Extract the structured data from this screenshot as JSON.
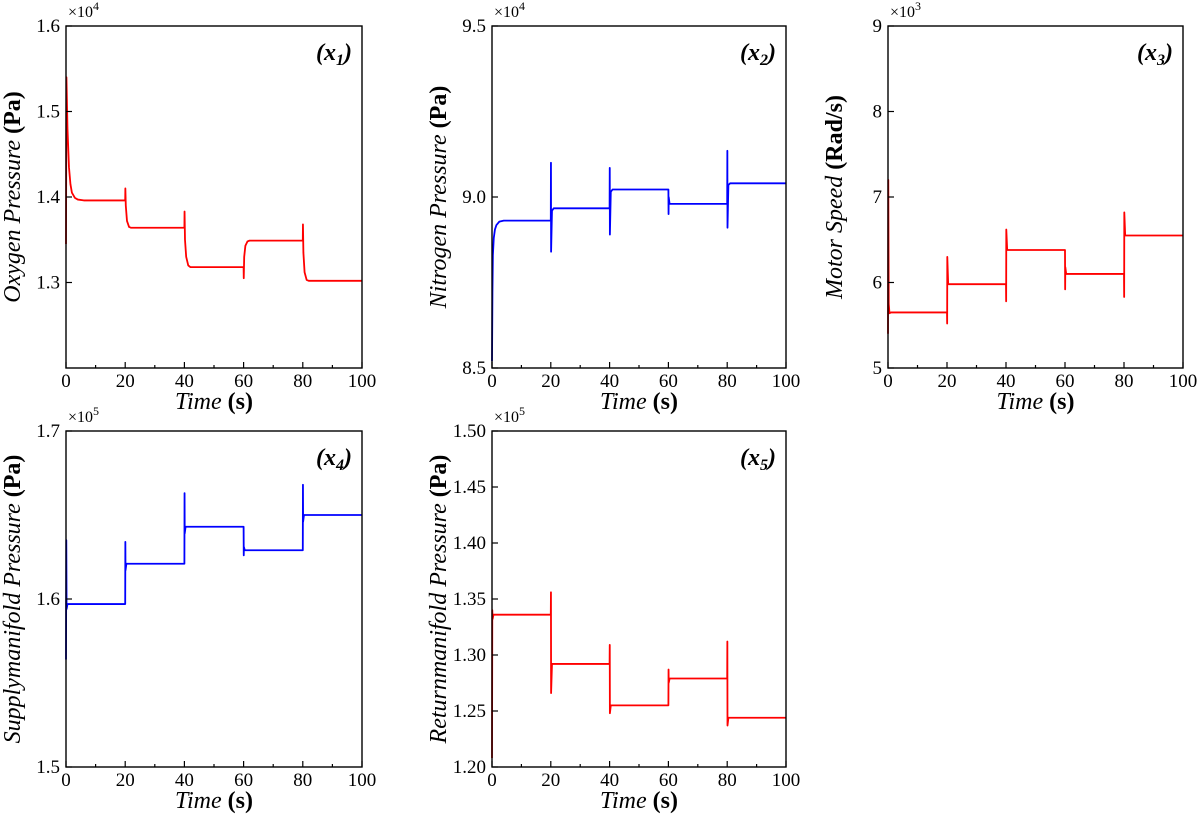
{
  "chart_data": [
    {
      "type": "line",
      "panel": "x1",
      "panel_tag": {
        "open": "(",
        "var": "x",
        "sub": "1",
        "close": ")"
      },
      "xlabel": {
        "italic": "Time",
        "bold": "(s)"
      },
      "ylabel": {
        "italic": "Oxygen Pressure",
        "bold": "(Pa)"
      },
      "multiplier": {
        "base": "×10",
        "exp": "4"
      },
      "xlim": [
        0,
        100
      ],
      "ylim": [
        1.2,
        1.6
      ],
      "xticks": [
        0,
        20,
        40,
        60,
        80,
        100
      ],
      "yticks": [
        1.3,
        1.4,
        1.5,
        1.6
      ],
      "ytick_labels": [
        "1.3",
        "1.4",
        "1.5",
        "1.6"
      ],
      "color": "#ff0000",
      "series": [
        {
          "name": "x1",
          "x": [
            0,
            0.15,
            0.5,
            1,
            1.5,
            2,
            3,
            4,
            6,
            20,
            20.05,
            20.2,
            20.6,
            21.3,
            22,
            40,
            40.05,
            40.2,
            40.6,
            41.3,
            42,
            60,
            60.05,
            60.2,
            60.6,
            61.3,
            62,
            80,
            80.05,
            80.2,
            80.6,
            81.3,
            82,
            100
          ],
          "y": [
            1.345,
            1.54,
            1.48,
            1.435,
            1.415,
            1.405,
            1.399,
            1.397,
            1.396,
            1.396,
            1.41,
            1.39,
            1.372,
            1.365,
            1.364,
            1.364,
            1.383,
            1.35,
            1.33,
            1.32,
            1.318,
            1.318,
            1.305,
            1.33,
            1.343,
            1.348,
            1.349,
            1.349,
            1.368,
            1.335,
            1.312,
            1.303,
            1.302,
            1.302
          ]
        }
      ]
    },
    {
      "type": "line",
      "panel": "x2",
      "panel_tag": {
        "open": "(",
        "var": "x",
        "sub": "2",
        "close": ")"
      },
      "xlabel": {
        "italic": "Time",
        "bold": "(s)"
      },
      "ylabel": {
        "italic": "Nitrogen Pressure",
        "bold": "(Pa)"
      },
      "multiplier": {
        "base": "×10",
        "exp": "4"
      },
      "xlim": [
        0,
        100
      ],
      "ylim": [
        8.5,
        9.5
      ],
      "xticks": [
        0,
        20,
        40,
        60,
        80,
        100
      ],
      "yticks": [
        8.5,
        9.0,
        9.5
      ],
      "ytick_labels": [
        "8.5",
        "9.0",
        "9.5"
      ],
      "color": "#0000ff",
      "series": [
        {
          "name": "x2",
          "x": [
            0,
            0.15,
            0.3,
            0.6,
            1,
            1.5,
            2.5,
            4,
            20,
            20.05,
            20.1,
            20.4,
            21,
            40,
            40.05,
            40.1,
            40.4,
            41,
            60,
            60.05,
            60.1,
            60.4,
            61,
            80,
            80.05,
            80.1,
            80.4,
            81,
            100
          ],
          "y": [
            8.52,
            8.72,
            8.83,
            8.88,
            8.905,
            8.918,
            8.928,
            8.931,
            8.931,
            9.1,
            8.84,
            8.96,
            8.967,
            8.967,
            9.085,
            8.89,
            9.015,
            9.022,
            9.022,
            8.95,
            9.0,
            8.98,
            8.98,
            8.98,
            9.135,
            8.91,
            9.035,
            9.04,
            9.04
          ]
        }
      ]
    },
    {
      "type": "line",
      "panel": "x3",
      "panel_tag": {
        "open": "(",
        "var": "x",
        "sub": "3",
        "close": ")"
      },
      "xlabel": {
        "italic": "Time",
        "bold": "(s)"
      },
      "ylabel": {
        "italic": "Motor Speed",
        "bold": "(Rad/s)"
      },
      "multiplier": {
        "base": "×10",
        "exp": "3"
      },
      "xlim": [
        0,
        100
      ],
      "ylim": [
        5,
        9
      ],
      "xticks": [
        0,
        20,
        40,
        60,
        80,
        100
      ],
      "yticks": [
        5,
        6,
        7,
        8,
        9
      ],
      "ytick_labels": [
        "5",
        "6",
        "7",
        "8",
        "9"
      ],
      "color": "#ff0000",
      "series": [
        {
          "name": "x3",
          "x": [
            0,
            0.1,
            0.25,
            0.5,
            1,
            20,
            20.05,
            20.1,
            20.4,
            40,
            40.05,
            40.1,
            40.4,
            60,
            60.05,
            60.1,
            60.4,
            80,
            80.05,
            80.1,
            80.4,
            100
          ],
          "y": [
            5.4,
            7.2,
            5.75,
            5.64,
            5.65,
            5.65,
            5.52,
            6.3,
            5.98,
            5.98,
            5.78,
            6.62,
            6.38,
            6.38,
            5.92,
            6.18,
            6.1,
            6.1,
            5.83,
            6.82,
            6.55,
            6.55
          ]
        }
      ]
    },
    {
      "type": "line",
      "panel": "x4",
      "panel_tag": {
        "open": "(",
        "var": "x",
        "sub": "4",
        "close": ")"
      },
      "xlabel": {
        "italic": "Time",
        "bold": "(s)"
      },
      "ylabel": {
        "italic": "Supplymanifold Pressure",
        "bold": "(Pa)"
      },
      "multiplier": {
        "base": "×10",
        "exp": "5"
      },
      "xlim": [
        0,
        100
      ],
      "ylim": [
        1.5,
        1.7
      ],
      "xticks": [
        0,
        20,
        40,
        60,
        80,
        100
      ],
      "yticks": [
        1.5,
        1.6,
        1.7
      ],
      "ytick_labels": [
        "1.5",
        "1.6",
        "1.7"
      ],
      "color": "#0000ff",
      "series": [
        {
          "name": "x4",
          "x": [
            0,
            0.1,
            0.2,
            0.5,
            1,
            20,
            20.05,
            20.1,
            20.4,
            40,
            40.05,
            40.1,
            40.4,
            60,
            60.05,
            60.1,
            60.4,
            80,
            80.05,
            80.1,
            80.4,
            100
          ],
          "y": [
            1.564,
            1.635,
            1.594,
            1.597,
            1.597,
            1.597,
            1.634,
            1.617,
            1.621,
            1.621,
            1.663,
            1.639,
            1.643,
            1.643,
            1.626,
            1.631,
            1.629,
            1.629,
            1.668,
            1.646,
            1.65,
            1.65
          ]
        }
      ]
    },
    {
      "type": "line",
      "panel": "x5",
      "panel_tag": {
        "open": "(",
        "var": "x",
        "sub": "5",
        "close": ")"
      },
      "xlabel": {
        "italic": "Time",
        "bold": "(s)"
      },
      "ylabel": {
        "italic": "Returnmanifold Pressure",
        "bold": "(Pa)"
      },
      "multiplier": {
        "base": "×10",
        "exp": "5"
      },
      "xlim": [
        0,
        100
      ],
      "ylim": [
        1.2,
        1.5
      ],
      "xticks": [
        0,
        20,
        40,
        60,
        80,
        100
      ],
      "yticks": [
        1.2,
        1.25,
        1.3,
        1.35,
        1.4,
        1.45,
        1.5
      ],
      "ytick_labels": [
        "1.20",
        "1.25",
        "1.30",
        "1.35",
        "1.40",
        "1.45",
        "1.50"
      ],
      "color": "#ff0000",
      "series": [
        {
          "name": "x5",
          "x": [
            0,
            0.1,
            0.2,
            0.5,
            1,
            20,
            20.05,
            20.1,
            20.4,
            40,
            40.05,
            40.1,
            40.4,
            60,
            60.05,
            60.1,
            60.4,
            80,
            80.05,
            80.1,
            80.4,
            100
          ],
          "y": [
            1.208,
            1.34,
            1.332,
            1.336,
            1.336,
            1.336,
            1.356,
            1.266,
            1.292,
            1.292,
            1.309,
            1.248,
            1.255,
            1.255,
            1.287,
            1.275,
            1.279,
            1.279,
            1.312,
            1.237,
            1.244,
            1.244
          ]
        }
      ]
    }
  ]
}
